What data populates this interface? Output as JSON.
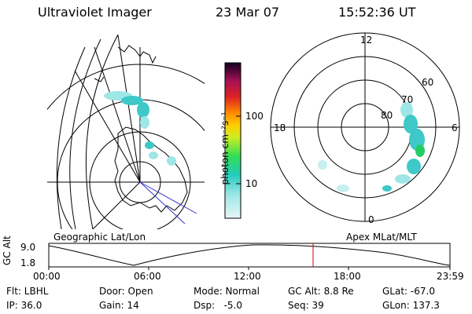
{
  "header": {
    "instrument": "Ultraviolet Imager",
    "date": "23 Mar 07",
    "time": "15:52:36 UT"
  },
  "left_panel": {
    "caption": "Geographic Lat/Lon"
  },
  "right_panel": {
    "caption": "Apex MLat/MLT",
    "mlt_labels": [
      "12",
      "18",
      "6",
      "0"
    ],
    "mlat_labels": [
      "60",
      "70",
      "80"
    ]
  },
  "colorbar": {
    "label": "photon cm⁻²s⁻¹",
    "ticks": [
      "100",
      "10"
    ]
  },
  "timeline": {
    "ylabel": "GC Alt",
    "yticks": [
      "9.0",
      "1.8"
    ],
    "xticks": [
      "00:00",
      "06:00",
      "12:00",
      "18:00",
      "23:59"
    ],
    "current_time": "15:52:36",
    "marker_color": "#cc0000"
  },
  "footer": {
    "flt": "Flt: LBHL",
    "ip": "IP: 36.0",
    "door": "Door: Open",
    "gain": "Gain: 14",
    "mode": "Mode: Normal",
    "dsp": "Dsp:   -5.0",
    "gc_alt": "GC Alt: 8.8 Re",
    "seq": "Seq: 39",
    "glat": "GLat: -67.0",
    "glon": "GLon: 137.3"
  },
  "colors": {
    "aurora_light": "#9fe6e6",
    "aurora_mid": "#3ec8c8",
    "aurora_green": "#22cc66",
    "meridian_blue": "#3333cc"
  }
}
